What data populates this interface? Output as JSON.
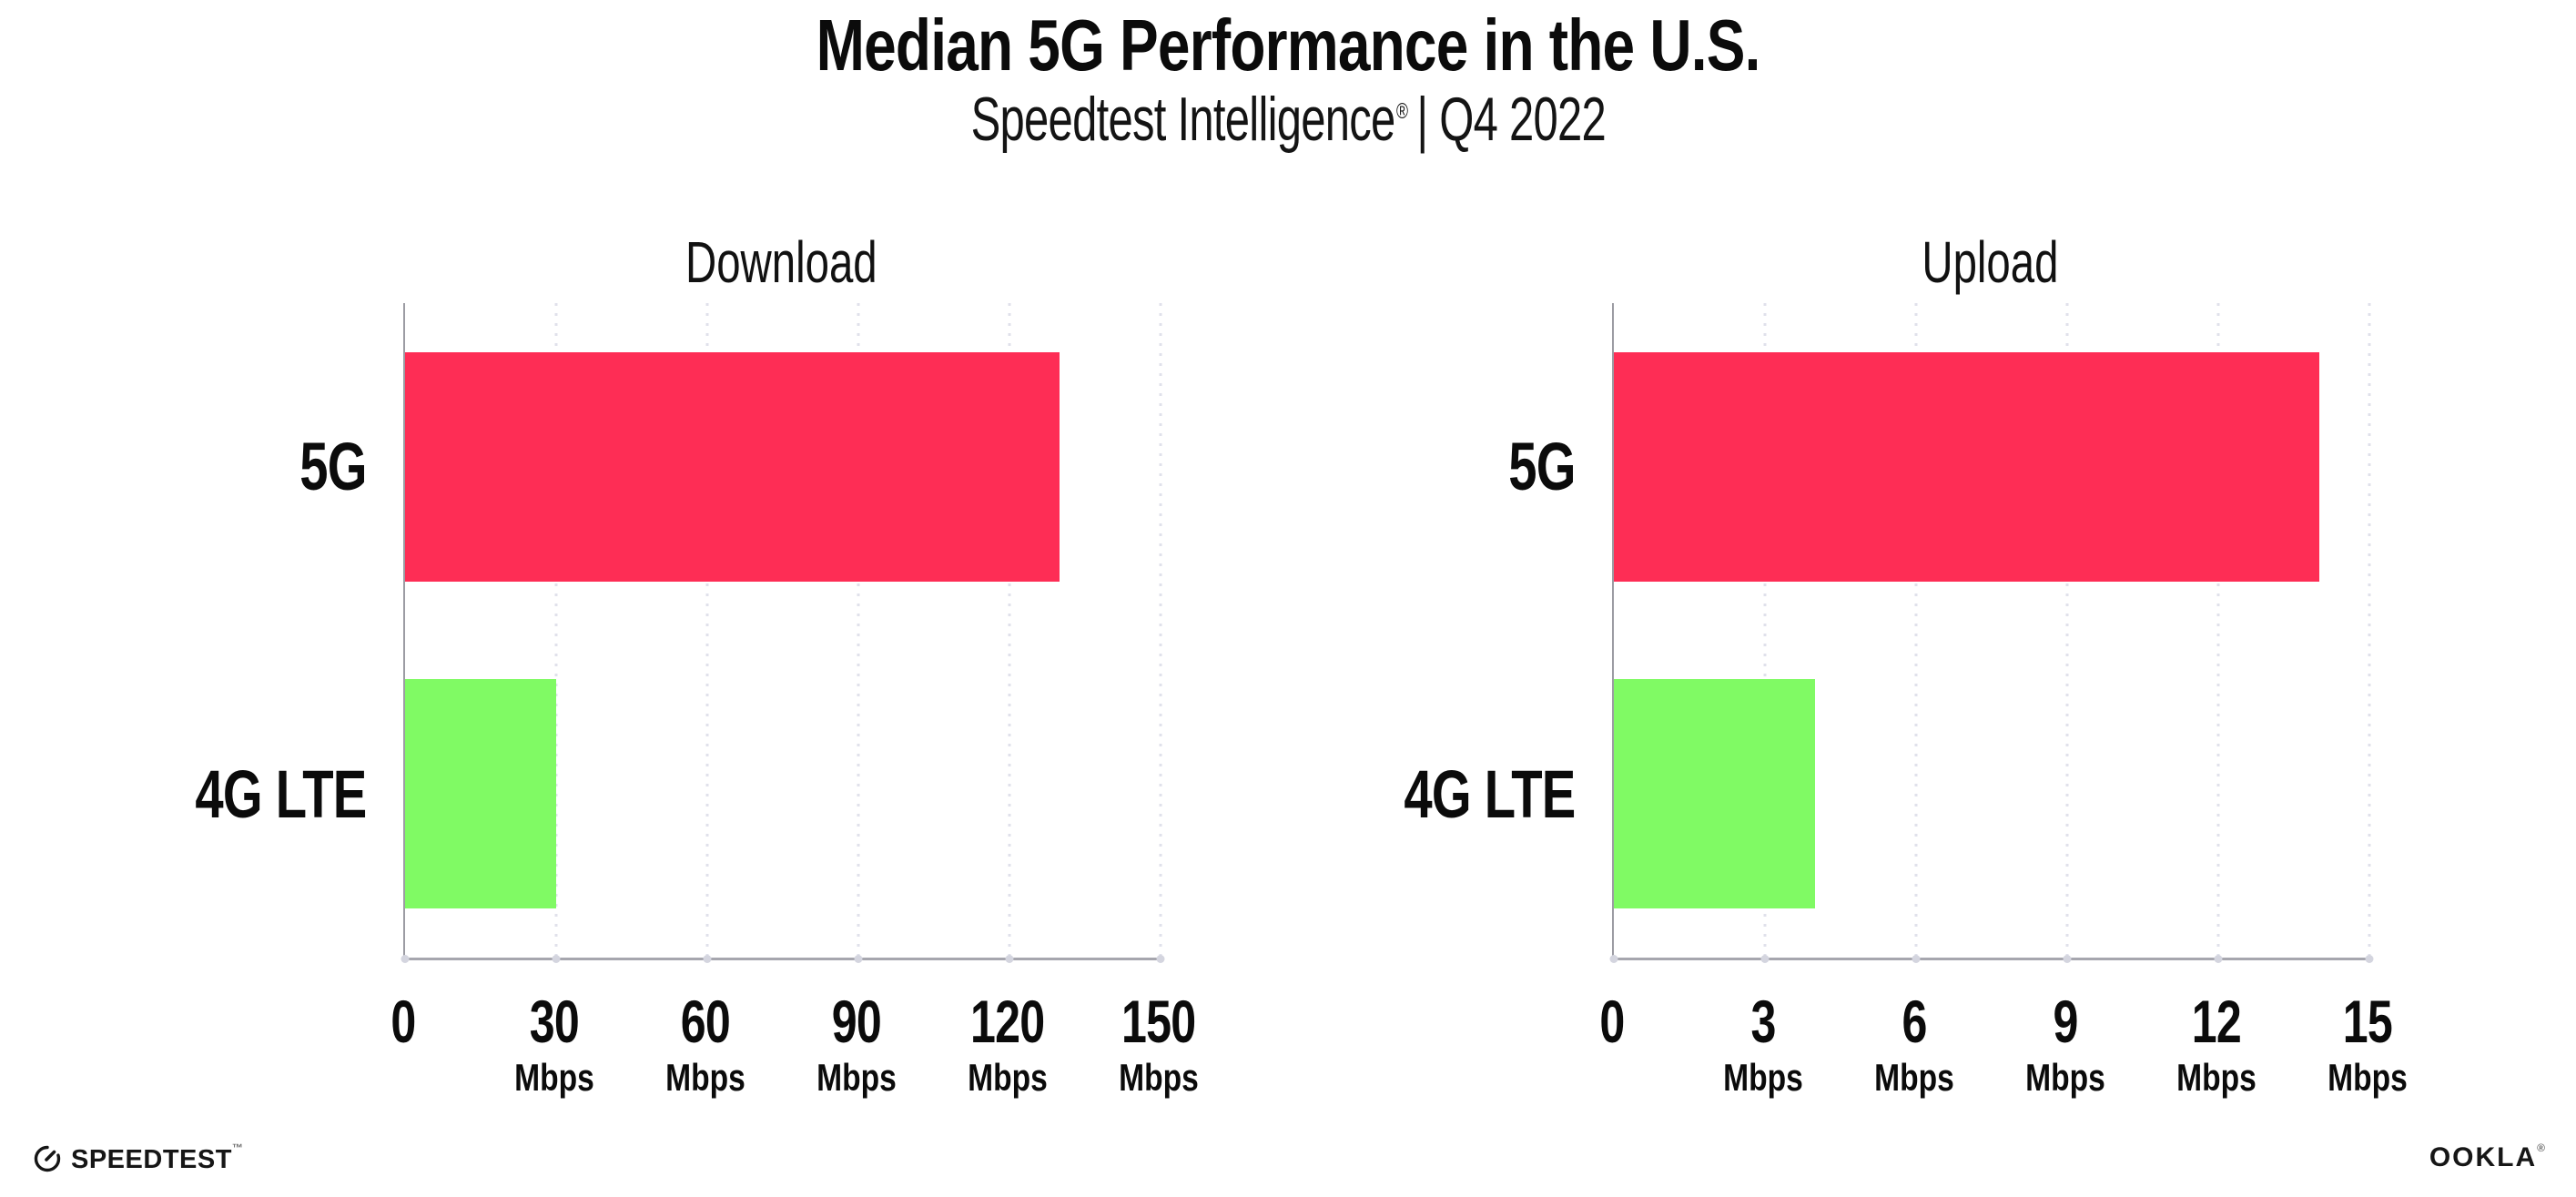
{
  "header": {
    "title": "Median 5G Performance in the U.S.",
    "subtitle_product": "Speedtest Intelligence",
    "subtitle_mark": "®",
    "subtitle_rest": "| Q4 2022"
  },
  "chart_data": [
    {
      "type": "bar",
      "orientation": "horizontal",
      "title": "Download",
      "categories": [
        "5G",
        "4G LTE"
      ],
      "values": [
        130,
        30
      ],
      "unit": "Mbps",
      "xlim": [
        0,
        150
      ],
      "xticks": [
        0,
        30,
        60,
        90,
        120,
        150
      ],
      "bar_colors": [
        "#FE2D55",
        "#80FA64"
      ],
      "grid": "dotted-vertical-gridlines",
      "legend": "none"
    },
    {
      "type": "bar",
      "orientation": "horizontal",
      "title": "Upload",
      "categories": [
        "5G",
        "4G LTE"
      ],
      "values": [
        14,
        4
      ],
      "unit": "Mbps",
      "xlim": [
        0,
        15
      ],
      "xticks": [
        0,
        3,
        6,
        9,
        12,
        15
      ],
      "bar_colors": [
        "#FE2D55",
        "#80FA64"
      ],
      "grid": "dotted-vertical-gridlines",
      "legend": "none"
    }
  ],
  "footer": {
    "speedtest_label": "SPEEDTEST",
    "speedtest_mark": "™",
    "ookla_label": "OOKLA",
    "ookla_mark": "®"
  },
  "colors": {
    "bar_5g": "#FE2D55",
    "bar_4g_lte": "#80FA64",
    "axis_line": "#A6A6AE",
    "grid_dot": "#E0E1EB",
    "text": "#0B0B0B"
  }
}
